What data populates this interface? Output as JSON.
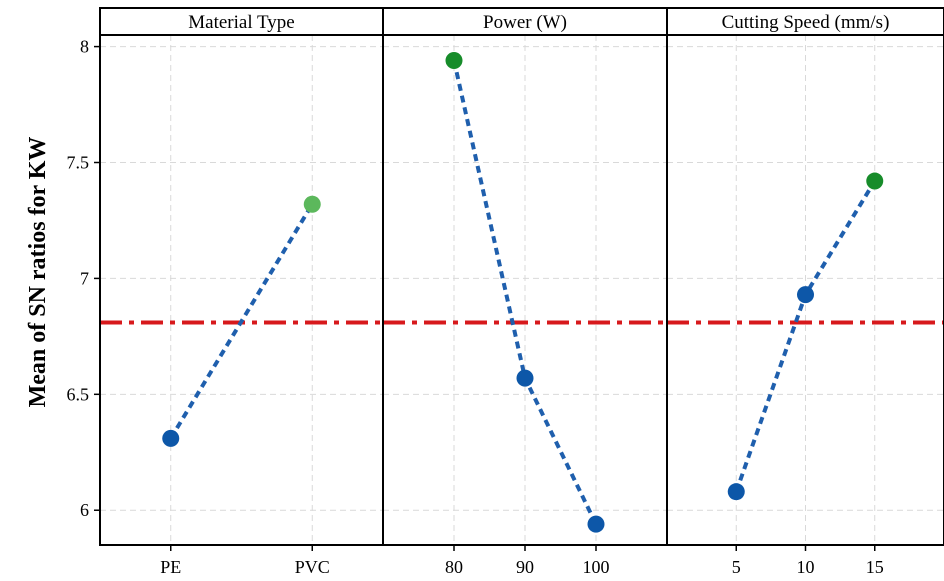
{
  "chart_data": {
    "type": "line",
    "ylabel": "Mean of SN ratios for KW",
    "ylim": [
      5.85,
      8.05
    ],
    "yticks": [
      6,
      6.5,
      7,
      7.5,
      8
    ],
    "ytick_labels": [
      "6",
      "6.5",
      "7",
      "7.5",
      "8"
    ],
    "grid": true,
    "reference_line": {
      "y": 6.81,
      "color": "#d7191c",
      "style": "dash-dot"
    },
    "line_color": "#1f5fad",
    "optimal_point_color": "#178c2a",
    "normal_point_color": "#0d57a8",
    "panels": [
      {
        "title": "Material Type",
        "categories": [
          "PE",
          "PVC"
        ],
        "values": [
          6.31,
          7.32
        ],
        "point_colors": [
          "#0d57a8",
          "#5cb85c"
        ]
      },
      {
        "title": "Power (W)",
        "categories": [
          "80",
          "90",
          "100"
        ],
        "values": [
          7.94,
          6.57,
          5.94
        ],
        "point_colors": [
          "#178c2a",
          "#0d57a8",
          "#0d57a8"
        ]
      },
      {
        "title": "Cutting Speed (mm/s)",
        "categories": [
          "5",
          "10",
          "15"
        ],
        "values": [
          6.08,
          6.93,
          7.42
        ],
        "point_colors": [
          "#0d57a8",
          "#0d57a8",
          "#178c2a"
        ]
      }
    ]
  }
}
